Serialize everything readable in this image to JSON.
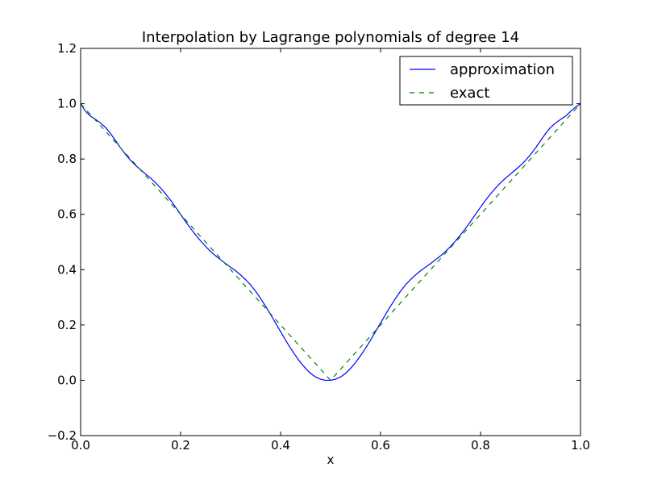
{
  "chart_data": {
    "type": "line",
    "title": "Interpolation by Lagrange polynomials of degree 14",
    "xlabel": "x",
    "ylabel": "",
    "xlim": [
      0.0,
      1.0
    ],
    "ylim": [
      -0.2,
      1.2
    ],
    "xticks": [
      0.0,
      0.2,
      0.4,
      0.6,
      0.8,
      1.0
    ],
    "yticks": [
      -0.2,
      0.0,
      0.2,
      0.4,
      0.6,
      0.8,
      1.0,
      1.2
    ],
    "xtick_labels": [
      "0.0",
      "0.2",
      "0.4",
      "0.6",
      "0.8",
      "1.0"
    ],
    "ytick_labels": [
      "−0.2",
      "0.0",
      "0.2",
      "0.4",
      "0.6",
      "0.8",
      "1.0",
      "1.2"
    ],
    "grid": false,
    "legend_position": "top-right",
    "series": [
      {
        "name": "approximation",
        "color": "#0000ff",
        "dash": "solid",
        "x": [
          0.0,
          0.01,
          0.02,
          0.03,
          0.04,
          0.05,
          0.06,
          0.07,
          0.08,
          0.09,
          0.1,
          0.11,
          0.12,
          0.13,
          0.14,
          0.15,
          0.16,
          0.17,
          0.18,
          0.19,
          0.2,
          0.21,
          0.22,
          0.23,
          0.24,
          0.25,
          0.26,
          0.27,
          0.28,
          0.29,
          0.3,
          0.31,
          0.32,
          0.33,
          0.34,
          0.35,
          0.36,
          0.37,
          0.38,
          0.39,
          0.4,
          0.41,
          0.42,
          0.43,
          0.44,
          0.45,
          0.46,
          0.47,
          0.48,
          0.49,
          0.5,
          0.51,
          0.52,
          0.53,
          0.54,
          0.55,
          0.56,
          0.57,
          0.58,
          0.59,
          0.6,
          0.61,
          0.62,
          0.63,
          0.64,
          0.65,
          0.66,
          0.67,
          0.68,
          0.69,
          0.7,
          0.71,
          0.72,
          0.73,
          0.74,
          0.75,
          0.76,
          0.77,
          0.78,
          0.79,
          0.8,
          0.81,
          0.82,
          0.83,
          0.84,
          0.85,
          0.86,
          0.87,
          0.88,
          0.89,
          0.9,
          0.91,
          0.92,
          0.93,
          0.94,
          0.95,
          0.96,
          0.97,
          0.98,
          0.99,
          1.0
        ],
        "y": [
          1.0,
          0.972,
          0.955,
          0.943,
          0.93,
          0.914,
          0.892,
          0.866,
          0.84,
          0.816,
          0.795,
          0.777,
          0.761,
          0.746,
          0.731,
          0.714,
          0.695,
          0.674,
          0.651,
          0.626,
          0.6,
          0.574,
          0.549,
          0.526,
          0.504,
          0.484,
          0.466,
          0.45,
          0.436,
          0.422,
          0.409,
          0.396,
          0.381,
          0.364,
          0.345,
          0.322,
          0.296,
          0.268,
          0.238,
          0.207,
          0.176,
          0.145,
          0.116,
          0.089,
          0.064,
          0.043,
          0.025,
          0.012,
          0.004,
          0.0,
          0.0,
          0.004,
          0.012,
          0.025,
          0.043,
          0.064,
          0.089,
          0.116,
          0.145,
          0.176,
          0.207,
          0.238,
          0.268,
          0.296,
          0.322,
          0.345,
          0.364,
          0.381,
          0.396,
          0.409,
          0.422,
          0.436,
          0.45,
          0.466,
          0.484,
          0.504,
          0.526,
          0.549,
          0.574,
          0.6,
          0.626,
          0.651,
          0.674,
          0.695,
          0.714,
          0.731,
          0.746,
          0.761,
          0.777,
          0.795,
          0.816,
          0.84,
          0.866,
          0.892,
          0.914,
          0.93,
          0.943,
          0.955,
          0.972,
          0.988,
          1.0
        ]
      },
      {
        "name": "exact",
        "color": "#008000",
        "dash": "dashed",
        "x": [
          0.0,
          0.5,
          1.0
        ],
        "y": [
          1.0,
          0.0,
          1.0
        ]
      }
    ]
  }
}
